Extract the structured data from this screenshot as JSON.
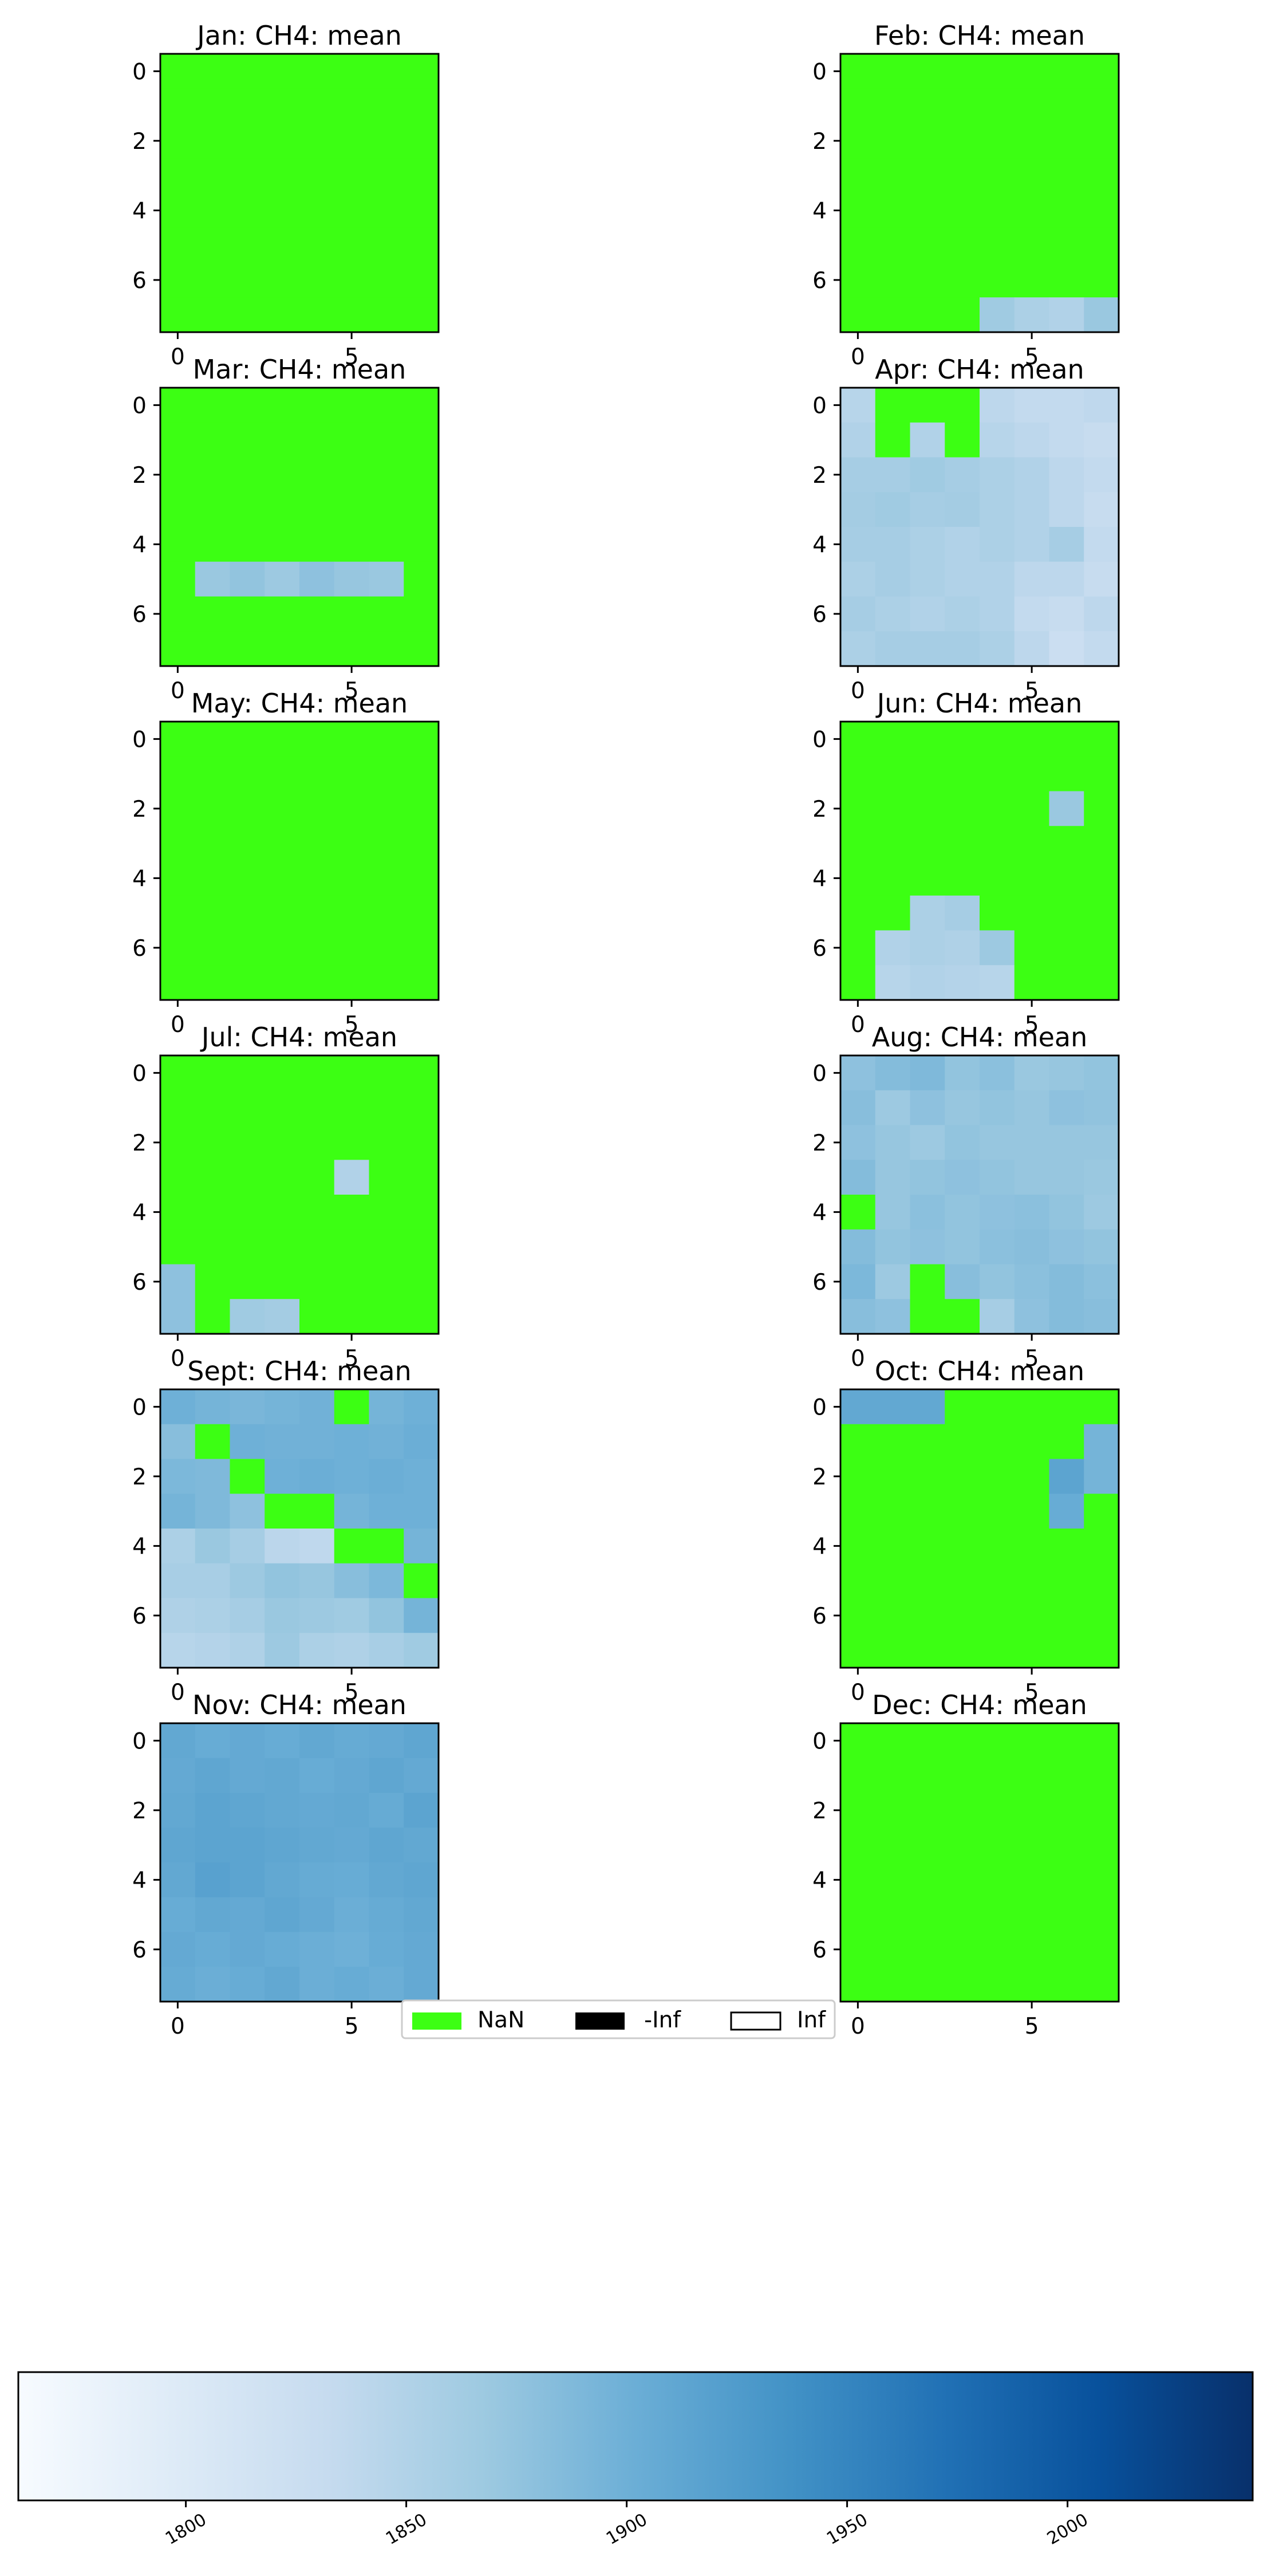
{
  "panel_titles": [
    "Jan: CH4: mean",
    "Feb: CH4: mean",
    "Mar: CH4: mean",
    "Apr: CH4: mean",
    "May: CH4: mean",
    "Jun: CH4: mean",
    "Jul: CH4: mean",
    "Aug: CH4: mean",
    "Sept: CH4: mean",
    "Oct: CH4: mean",
    "Nov: CH4: mean",
    "Dec: CH4: mean"
  ],
  "legend": {
    "nan": "NaN",
    "neg_inf": "-Inf",
    "pos_inf": "Inf"
  },
  "colors": {
    "nan": "#3cff13",
    "neg_inf": "#000000",
    "pos_inf": "#ffffff",
    "colormap": [
      "#f7fbff",
      "#deebf7",
      "#c6dbef",
      "#9ecae1",
      "#6baed6",
      "#4292c6",
      "#2171b5",
      "#08519c",
      "#08306b"
    ]
  },
  "chart_data": {
    "type": "heatmap",
    "colormap": "Blues",
    "colorbar": {
      "min": 1762,
      "max": 2042,
      "ticks": [
        1800,
        1850,
        1900,
        1950,
        2000
      ],
      "tick_labels": [
        "1800",
        "1850",
        "1900",
        "1950",
        "2000"
      ]
    },
    "axes": {
      "x_ticks": [
        0,
        5
      ],
      "y_ticks": [
        0,
        2,
        4,
        6
      ],
      "shape": [
        8,
        8
      ]
    },
    "legend_entries": [
      "NaN",
      "-Inf",
      "Inf"
    ],
    "panels": [
      {
        "title": "Jan: CH4: mean",
        "grid": [
          [
            null,
            null,
            null,
            null,
            null,
            null,
            null,
            null
          ],
          [
            null,
            null,
            null,
            null,
            null,
            null,
            null,
            null
          ],
          [
            null,
            null,
            null,
            null,
            null,
            null,
            null,
            null
          ],
          [
            null,
            null,
            null,
            null,
            null,
            null,
            null,
            null
          ],
          [
            null,
            null,
            null,
            null,
            null,
            null,
            null,
            null
          ],
          [
            null,
            null,
            null,
            null,
            null,
            null,
            null,
            null
          ],
          [
            null,
            null,
            null,
            null,
            null,
            null,
            null,
            null
          ],
          [
            null,
            null,
            null,
            null,
            null,
            null,
            null,
            null
          ]
        ]
      },
      {
        "title": "Feb: CH4: mean",
        "grid": [
          [
            null,
            null,
            null,
            null,
            null,
            null,
            null,
            null
          ],
          [
            null,
            null,
            null,
            null,
            null,
            null,
            null,
            null
          ],
          [
            null,
            null,
            null,
            null,
            null,
            null,
            null,
            null
          ],
          [
            null,
            null,
            null,
            null,
            null,
            null,
            null,
            null
          ],
          [
            null,
            null,
            null,
            null,
            null,
            null,
            null,
            null
          ],
          [
            null,
            null,
            null,
            null,
            null,
            null,
            null,
            null
          ],
          [
            null,
            null,
            null,
            null,
            null,
            null,
            null,
            null
          ],
          [
            null,
            null,
            null,
            null,
            1865,
            1855,
            1850,
            1870
          ]
        ]
      },
      {
        "title": "Mar: CH4: mean",
        "grid": [
          [
            null,
            null,
            null,
            null,
            null,
            null,
            null,
            null
          ],
          [
            null,
            null,
            null,
            null,
            null,
            null,
            null,
            null
          ],
          [
            null,
            null,
            null,
            null,
            null,
            null,
            null,
            null
          ],
          [
            null,
            null,
            null,
            null,
            null,
            null,
            null,
            null
          ],
          [
            null,
            null,
            null,
            null,
            null,
            null,
            null,
            null
          ],
          [
            null,
            1870,
            1875,
            1868,
            1878,
            1872,
            1870,
            null
          ],
          [
            null,
            null,
            null,
            null,
            null,
            null,
            null,
            null
          ],
          [
            null,
            null,
            null,
            null,
            null,
            null,
            null,
            null
          ]
        ]
      },
      {
        "title": "Apr: CH4: mean",
        "grid": [
          [
            1845,
            null,
            null,
            null,
            1840,
            1835,
            1835,
            1838
          ],
          [
            1850,
            null,
            1850,
            null,
            1845,
            1840,
            1835,
            1830
          ],
          [
            1860,
            1860,
            1865,
            1860,
            1855,
            1850,
            1840,
            1835
          ],
          [
            1862,
            1865,
            1860,
            1862,
            1855,
            1850,
            1840,
            1830
          ],
          [
            1860,
            1860,
            1855,
            1850,
            1855,
            1850,
            1860,
            1835
          ],
          [
            1855,
            1860,
            1855,
            1850,
            1850,
            1840,
            1840,
            1830
          ],
          [
            1860,
            1855,
            1850,
            1855,
            1850,
            1835,
            1830,
            1840
          ],
          [
            1855,
            1860,
            1860,
            1860,
            1855,
            1840,
            1825,
            1835
          ]
        ]
      },
      {
        "title": "May: CH4: mean",
        "grid": [
          [
            null,
            null,
            null,
            null,
            null,
            null,
            null,
            null
          ],
          [
            null,
            null,
            null,
            null,
            null,
            null,
            null,
            null
          ],
          [
            null,
            null,
            null,
            null,
            null,
            null,
            null,
            null
          ],
          [
            null,
            null,
            null,
            null,
            null,
            null,
            null,
            null
          ],
          [
            null,
            null,
            null,
            null,
            null,
            null,
            null,
            null
          ],
          [
            null,
            null,
            null,
            null,
            null,
            null,
            null,
            null
          ],
          [
            null,
            null,
            null,
            null,
            null,
            null,
            null,
            null
          ],
          [
            null,
            null,
            null,
            null,
            null,
            null,
            null,
            null
          ]
        ]
      },
      {
        "title": "Jun: CH4: mean",
        "grid": [
          [
            null,
            null,
            null,
            null,
            null,
            null,
            null,
            null
          ],
          [
            null,
            null,
            null,
            null,
            null,
            null,
            null,
            null
          ],
          [
            null,
            null,
            null,
            null,
            null,
            null,
            1870,
            null
          ],
          [
            null,
            null,
            null,
            null,
            null,
            null,
            null,
            null
          ],
          [
            null,
            null,
            null,
            null,
            null,
            null,
            null,
            null
          ],
          [
            null,
            null,
            1855,
            1860,
            null,
            null,
            null,
            null
          ],
          [
            null,
            1850,
            1855,
            1852,
            1868,
            null,
            null,
            null
          ],
          [
            null,
            1845,
            1850,
            1848,
            1845,
            null,
            null,
            null
          ]
        ]
      },
      {
        "title": "Jul: CH4: mean",
        "grid": [
          [
            null,
            null,
            null,
            null,
            null,
            null,
            null,
            null
          ],
          [
            null,
            null,
            null,
            null,
            null,
            null,
            null,
            null
          ],
          [
            null,
            null,
            null,
            null,
            null,
            null,
            null,
            null
          ],
          [
            null,
            null,
            null,
            null,
            null,
            1850,
            null,
            null
          ],
          [
            null,
            null,
            null,
            null,
            null,
            null,
            null,
            null
          ],
          [
            null,
            null,
            null,
            null,
            null,
            null,
            null,
            null
          ],
          [
            1878,
            null,
            null,
            null,
            null,
            null,
            null,
            null
          ],
          [
            1878,
            null,
            1865,
            1862,
            null,
            null,
            null,
            null
          ]
        ]
      },
      {
        "title": "Aug: CH4: mean",
        "grid": [
          [
            1878,
            1885,
            1888,
            1875,
            1880,
            1870,
            1872,
            1875
          ],
          [
            1882,
            1868,
            1878,
            1872,
            1875,
            1872,
            1878,
            1876
          ],
          [
            1878,
            1872,
            1868,
            1875,
            1872,
            1872,
            1872,
            1872
          ],
          [
            1885,
            1872,
            1875,
            1878,
            1875,
            1872,
            1872,
            1870
          ],
          [
            null,
            1872,
            1880,
            1875,
            1878,
            1880,
            1875,
            1868
          ],
          [
            1885,
            1875,
            1878,
            1875,
            1880,
            1882,
            1878,
            1875
          ],
          [
            1890,
            1868,
            null,
            1882,
            1875,
            1880,
            1885,
            1880
          ],
          [
            1882,
            1878,
            null,
            null,
            1860,
            1878,
            1885,
            1882
          ]
        ]
      },
      {
        "title": "Sept: CH4: mean",
        "grid": [
          [
            1900,
            1895,
            1892,
            1895,
            1898,
            null,
            1895,
            1900
          ],
          [
            1882,
            null,
            1900,
            1898,
            1898,
            1900,
            1898,
            1902
          ],
          [
            1890,
            1888,
            null,
            1900,
            1902,
            1900,
            1902,
            1900
          ],
          [
            1895,
            1888,
            1878,
            null,
            null,
            1895,
            1900,
            1900
          ],
          [
            1855,
            1870,
            1860,
            1842,
            1838,
            null,
            null,
            1895
          ],
          [
            1858,
            1858,
            1868,
            1875,
            1872,
            1882,
            1890,
            null
          ],
          [
            1852,
            1855,
            1860,
            1870,
            1868,
            1865,
            1875,
            1895
          ],
          [
            1845,
            1848,
            1852,
            1868,
            1855,
            1852,
            1858,
            1865
          ]
        ]
      },
      {
        "title": "Oct: CH4: mean",
        "grid": [
          [
            1910,
            1910,
            1910,
            null,
            null,
            null,
            null,
            null
          ],
          [
            null,
            null,
            null,
            null,
            null,
            null,
            null,
            1895
          ],
          [
            null,
            null,
            null,
            null,
            null,
            null,
            1915,
            1895
          ],
          [
            null,
            null,
            null,
            null,
            null,
            null,
            1905,
            null
          ],
          [
            null,
            null,
            null,
            null,
            null,
            null,
            null,
            null
          ],
          [
            null,
            null,
            null,
            null,
            null,
            null,
            null,
            null
          ],
          [
            null,
            null,
            null,
            null,
            null,
            null,
            null,
            null
          ],
          [
            null,
            null,
            null,
            null,
            null,
            null,
            null,
            null
          ]
        ]
      },
      {
        "title": "Nov: CH4: mean",
        "grid": [
          [
            1910,
            1905,
            1908,
            1905,
            1910,
            1906,
            1908,
            1912
          ],
          [
            1908,
            1912,
            1908,
            1910,
            1905,
            1908,
            1912,
            1908
          ],
          [
            1910,
            1915,
            1912,
            1910,
            1908,
            1910,
            1906,
            1915
          ],
          [
            1912,
            1915,
            1915,
            1912,
            1910,
            1908,
            1912,
            1910
          ],
          [
            1910,
            1918,
            1915,
            1910,
            1906,
            1905,
            1910,
            1912
          ],
          [
            1905,
            1910,
            1908,
            1912,
            1908,
            1902,
            1906,
            1910
          ],
          [
            1908,
            1905,
            1908,
            1905,
            1902,
            1900,
            1905,
            1908
          ],
          [
            1906,
            1902,
            1905,
            1910,
            1902,
            1905,
            1902,
            1908
          ]
        ]
      },
      {
        "title": "Dec: CH4: mean",
        "grid": [
          [
            null,
            null,
            null,
            null,
            null,
            null,
            null,
            null
          ],
          [
            null,
            null,
            null,
            null,
            null,
            null,
            null,
            null
          ],
          [
            null,
            null,
            null,
            null,
            null,
            null,
            null,
            null
          ],
          [
            null,
            null,
            null,
            null,
            null,
            null,
            null,
            null
          ],
          [
            null,
            null,
            null,
            null,
            null,
            null,
            null,
            null
          ],
          [
            null,
            null,
            null,
            null,
            null,
            null,
            null,
            null
          ],
          [
            null,
            null,
            null,
            null,
            null,
            null,
            null,
            null
          ],
          [
            null,
            null,
            null,
            null,
            null,
            null,
            null,
            null
          ]
        ]
      }
    ]
  }
}
